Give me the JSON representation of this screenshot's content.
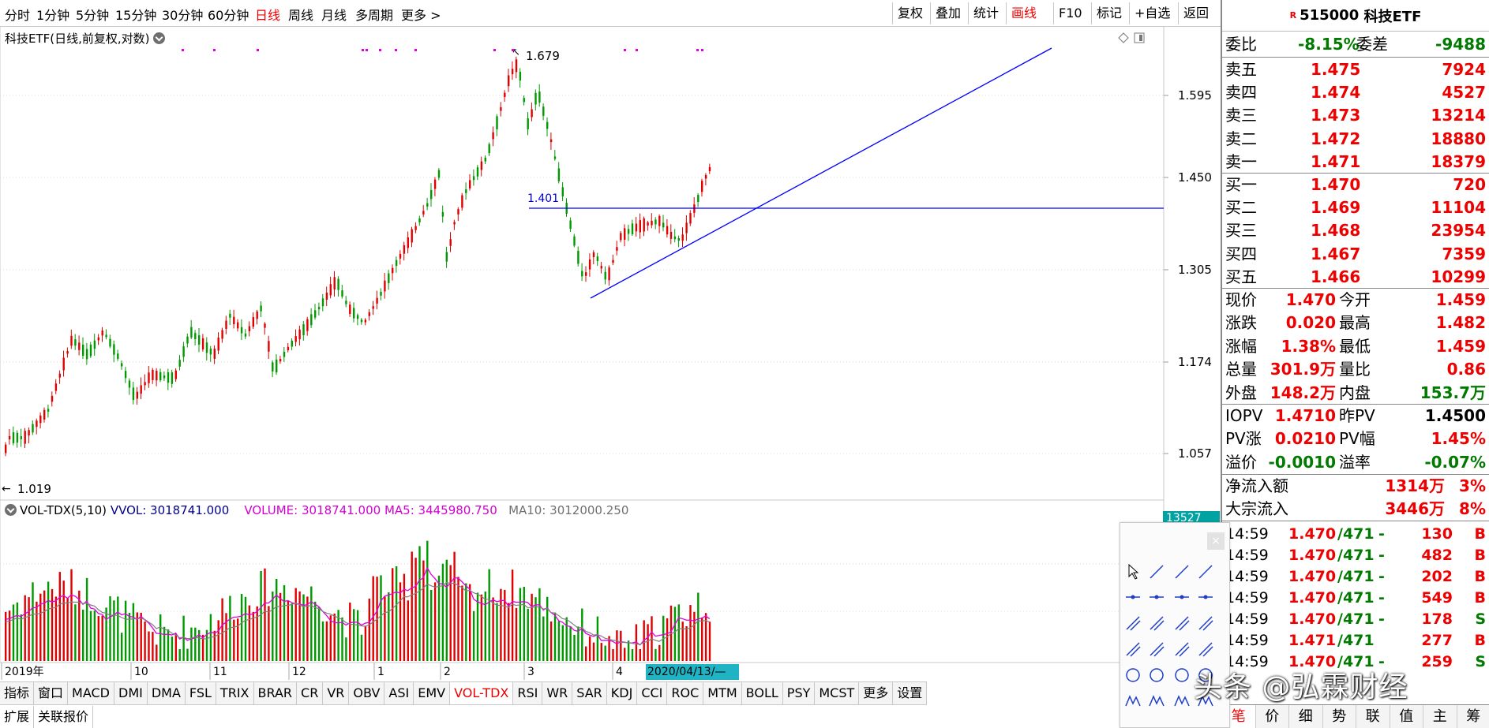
{
  "toolbar": {
    "periods": [
      "分时",
      "1分钟",
      "5分钟",
      "15分钟",
      "30分钟",
      "60分钟",
      "日线",
      "周线",
      "月线",
      "多周期",
      "更多 >"
    ],
    "active_period": "日线",
    "buttons": [
      "复权",
      "叠加",
      "统计",
      "画线",
      "F10",
      "标记",
      "+自选",
      "返回"
    ],
    "active_button": "画线"
  },
  "main_chart": {
    "title": "科技ETF(日线,前复权,对数)",
    "high_label": "1.679",
    "low_label": "1.019",
    "support_label": "1.401",
    "price_axis": [
      "1.595",
      "1.450",
      "1.305",
      "1.174",
      "1.057"
    ],
    "colors": {
      "up": "#e00000",
      "down": "#009900",
      "trendline": "#0000ff"
    }
  },
  "volume_chart": {
    "name": "VOL-TDX(5,10)",
    "vvol": "VVOL: 3018741.000",
    "volume": "VOLUME: 3018741.000",
    "ma5": "MA5: 3445980.750",
    "ma10": "MA10: 3012000.250",
    "axis_badge": "13527"
  },
  "date_axis": {
    "labels": [
      "2019年",
      "10",
      "11",
      "12",
      "1",
      "2",
      "3",
      "4"
    ],
    "highlight": "2020/04/13/—"
  },
  "indicator_tabs": [
    "指标",
    "窗口",
    "MACD",
    "DMI",
    "DMA",
    "FSL",
    "TRIX",
    "BRAR",
    "CR",
    "VR",
    "OBV",
    "ASI",
    "EMV",
    "VOL-TDX",
    "RSI",
    "WR",
    "SAR",
    "KDJ",
    "CCI",
    "ROC",
    "MTM",
    "BOLL",
    "PSY",
    "MCST",
    "更多",
    "设置"
  ],
  "active_indicator": "VOL-TDX",
  "bottom_tabs": [
    "扩展",
    "关联报价"
  ],
  "quote": {
    "code": "515000",
    "name": "科技ETF",
    "r_mark": "R",
    "weibi_label": "委比",
    "weibi": "-8.15%",
    "weicha_label": "委差",
    "weicha": "-9488",
    "asks": [
      {
        "label": "卖五",
        "price": "1.475",
        "vol": "7924"
      },
      {
        "label": "卖四",
        "price": "1.474",
        "vol": "4527"
      },
      {
        "label": "卖三",
        "price": "1.473",
        "vol": "13214"
      },
      {
        "label": "卖二",
        "price": "1.472",
        "vol": "18880"
      },
      {
        "label": "卖一",
        "price": "1.471",
        "vol": "18379"
      }
    ],
    "bids": [
      {
        "label": "买一",
        "price": "1.470",
        "vol": "720"
      },
      {
        "label": "买二",
        "price": "1.469",
        "vol": "11104"
      },
      {
        "label": "买三",
        "price": "1.468",
        "vol": "23954"
      },
      {
        "label": "买四",
        "price": "1.467",
        "vol": "7359"
      },
      {
        "label": "买五",
        "price": "1.466",
        "vol": "10299"
      }
    ],
    "stats": [
      {
        "l1": "现价",
        "v1": "1.470",
        "c1": "red",
        "l2": "今开",
        "v2": "1.459",
        "c2": "red"
      },
      {
        "l1": "涨跌",
        "v1": "0.020",
        "c1": "red",
        "l2": "最高",
        "v2": "1.482",
        "c2": "red"
      },
      {
        "l1": "涨幅",
        "v1": "1.38%",
        "c1": "red",
        "l2": "最低",
        "v2": "1.459",
        "c2": "red"
      },
      {
        "l1": "总量",
        "v1": "301.9万",
        "c1": "red",
        "l2": "量比",
        "v2": "0.86",
        "c2": "red"
      },
      {
        "l1": "外盘",
        "v1": "148.2万",
        "c1": "red",
        "l2": "内盘",
        "v2": "153.7万",
        "c2": "green"
      }
    ],
    "iopv": [
      {
        "l1": "IOPV",
        "v1": "1.4710",
        "c1": "red",
        "l2": "昨PV",
        "v2": "1.4500",
        "c2": "blk"
      },
      {
        "l1": "PV涨",
        "v1": "0.0210",
        "c1": "red",
        "l2": "PV幅",
        "v2": "1.45%",
        "c2": "red"
      },
      {
        "l1": "溢价",
        "v1": "-0.0010",
        "c1": "green",
        "l2": "溢率",
        "v2": "-0.07%",
        "c2": "green"
      }
    ],
    "flows": [
      {
        "label": "净流入额",
        "value": "1314万",
        "pct": "3%"
      },
      {
        "label": "大宗流入",
        "value": "3446万",
        "pct": "8%"
      }
    ],
    "ticks": [
      {
        "time": "14:59",
        "price": "1.470",
        "slash": "/471",
        "flag": "-",
        "vol": "130",
        "side": "B"
      },
      {
        "time": "14:59",
        "price": "1.470",
        "slash": "/471",
        "flag": "-",
        "vol": "482",
        "side": "B"
      },
      {
        "time": "14:59",
        "price": "1.470",
        "slash": "/471",
        "flag": "-",
        "vol": "202",
        "side": "B"
      },
      {
        "time": "14:59",
        "price": "1.470",
        "slash": "/471",
        "flag": "-",
        "vol": "549",
        "side": "B"
      },
      {
        "time": "14:59",
        "price": "1.470",
        "slash": "/471",
        "flag": "-",
        "vol": "178",
        "side": "S"
      },
      {
        "time": "14:59",
        "price": "1.471",
        "slash": "/471",
        "flag": "",
        "vol": "277",
        "side": "B"
      },
      {
        "time": "14:59",
        "price": "1.470",
        "slash": "/471",
        "flag": "-",
        "vol": "259",
        "side": "S"
      }
    ],
    "tabs": [
      "笔",
      "价",
      "细",
      "势",
      "联",
      "值",
      "主",
      "筹"
    ]
  },
  "watermark": "头条 @弘霖财经"
}
